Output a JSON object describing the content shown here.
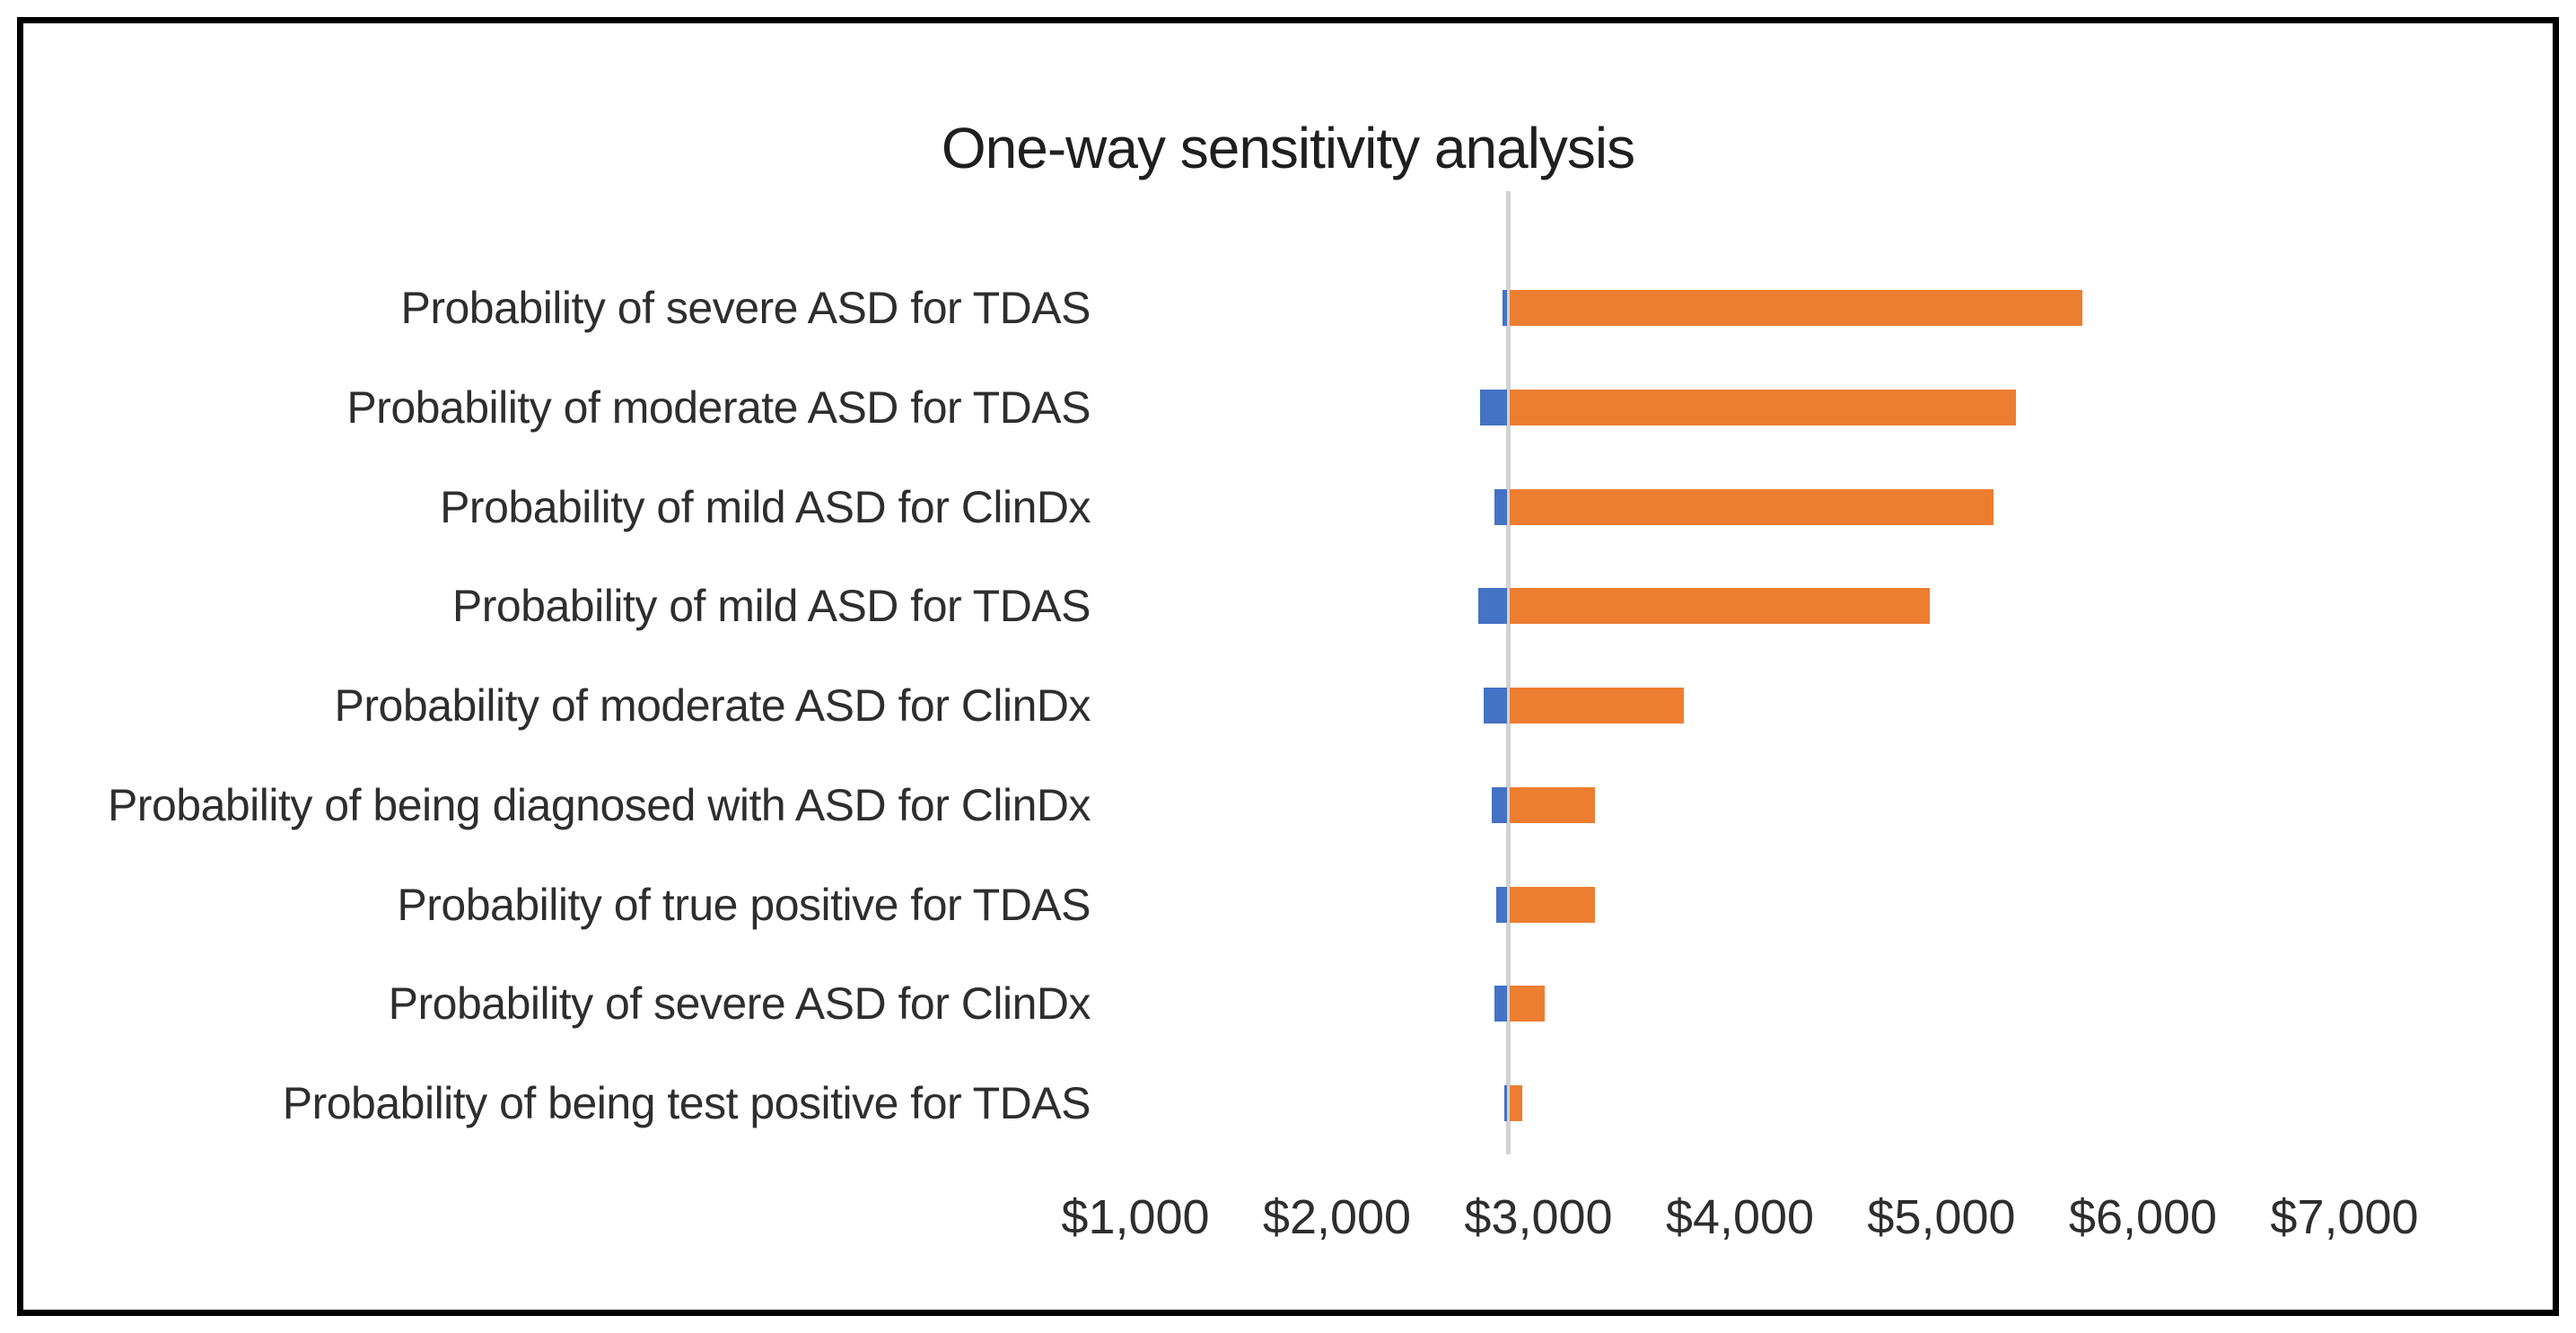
{
  "chart_data": {
    "type": "bar",
    "variant": "tornado",
    "orientation": "horizontal",
    "title": "One-way sensitivity analysis",
    "xlabel": "",
    "ylabel": "",
    "grid": false,
    "legend": "none",
    "x_axis": {
      "tick_labels": [
        "$1,000",
        "$2,000",
        "$3,000",
        "$4,000",
        "$5,000",
        "$6,000",
        "$7,000"
      ],
      "tick_values": [
        1000,
        2000,
        3000,
        4000,
        5000,
        6000,
        7000
      ],
      "range_shown": [
        800,
        7600
      ],
      "format": "USD"
    },
    "baseline_value": 2850,
    "series": [
      {
        "name": "low-value-bar",
        "color": "#4472C4"
      },
      {
        "name": "high-value-bar",
        "color": "#ED7D31"
      }
    ],
    "rows": [
      {
        "label": "Probability of severe ASD for TDAS",
        "low": 2820,
        "high": 5700
      },
      {
        "label": "Probability of moderate ASD for TDAS",
        "low": 2710,
        "high": 5370
      },
      {
        "label": "Probability of mild ASD for ClinDx",
        "low": 2780,
        "high": 5260
      },
      {
        "label": "Probability of mild ASD for TDAS",
        "low": 2700,
        "high": 4940
      },
      {
        "label": "Probability of moderate ASD for ClinDx",
        "low": 2730,
        "high": 3720
      },
      {
        "label": "Probability of being diagnosed with ASD for ClinDx",
        "low": 2770,
        "high": 3280
      },
      {
        "label": "Probability of true positive for TDAS",
        "low": 2790,
        "high": 3280
      },
      {
        "label": "Probability of severe ASD for ClinDx",
        "low": 2780,
        "high": 3030
      },
      {
        "label": "Probability of being test positive for TDAS",
        "low": 2830,
        "high": 2920
      }
    ],
    "colors": {
      "low_bar": "#4472C4",
      "high_bar": "#ED7D31",
      "axis_line": "#D2D2D2",
      "text": "#2e2e2e",
      "frame": "#000000",
      "background": "#FFFFFF"
    }
  }
}
